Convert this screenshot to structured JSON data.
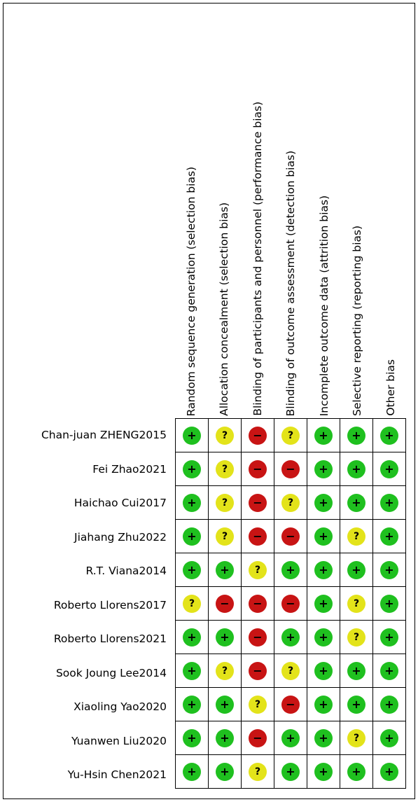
{
  "domains": [
    "Random sequence generation (selection bias)",
    "Allocation concealment (selection bias)",
    "Blinding of participants and personnel (performance bias)",
    "Blinding of outcome assessment (detection bias)",
    "Incomplete outcome data (attrition bias)",
    "Selective reporting (reporting bias)",
    "Other bias"
  ],
  "judgement_symbols": {
    "low": "+",
    "unclear": "?",
    "high": "−"
  },
  "colors": {
    "low": "#1fc01f",
    "unclear": "#e3e31a",
    "high": "#c81414"
  },
  "studies": [
    {
      "name": "Chan-juan ZHENG2015",
      "ratings": [
        "low",
        "unclear",
        "high",
        "unclear",
        "low",
        "low",
        "low"
      ]
    },
    {
      "name": "Fei Zhao2021",
      "ratings": [
        "low",
        "unclear",
        "high",
        "high",
        "low",
        "low",
        "low"
      ]
    },
    {
      "name": "Haichao Cui2017",
      "ratings": [
        "low",
        "unclear",
        "high",
        "unclear",
        "low",
        "low",
        "low"
      ]
    },
    {
      "name": "Jiahang Zhu2022",
      "ratings": [
        "low",
        "unclear",
        "high",
        "high",
        "low",
        "unclear",
        "low"
      ]
    },
    {
      "name": "R.T. Viana2014",
      "ratings": [
        "low",
        "low",
        "unclear",
        "low",
        "low",
        "low",
        "low"
      ]
    },
    {
      "name": "Roberto Llorens2017",
      "ratings": [
        "unclear",
        "high",
        "high",
        "high",
        "low",
        "unclear",
        "low"
      ]
    },
    {
      "name": "Roberto Llorens2021",
      "ratings": [
        "low",
        "low",
        "high",
        "low",
        "low",
        "unclear",
        "low"
      ]
    },
    {
      "name": "Sook Joung Lee2014",
      "ratings": [
        "low",
        "unclear",
        "high",
        "unclear",
        "low",
        "low",
        "low"
      ]
    },
    {
      "name": "Xiaoling Yao2020",
      "ratings": [
        "low",
        "low",
        "unclear",
        "high",
        "low",
        "low",
        "low"
      ]
    },
    {
      "name": "Yuanwen Liu2020",
      "ratings": [
        "low",
        "low",
        "high",
        "low",
        "low",
        "unclear",
        "low"
      ]
    },
    {
      "name": "Yu-Hsin Chen2021",
      "ratings": [
        "low",
        "low",
        "unclear",
        "low",
        "low",
        "low",
        "low"
      ]
    }
  ]
}
